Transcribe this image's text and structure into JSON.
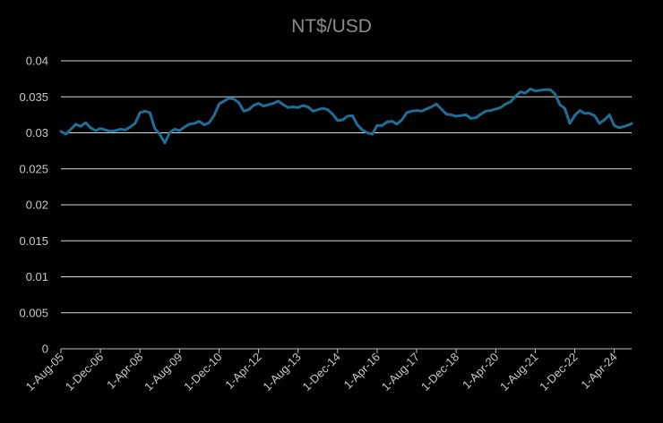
{
  "chart_data": {
    "type": "line",
    "title": "NT$/USD",
    "xlabel": "",
    "ylabel": "",
    "ylim": [
      0,
      0.04
    ],
    "yticks": [
      "0",
      "0.005",
      "0.01",
      "0.015",
      "0.02",
      "0.025",
      "0.03",
      "0.035",
      "0.04"
    ],
    "xticks": [
      "1-Aug-05",
      "1-Dec-06",
      "1-Apr-08",
      "1-Aug-09",
      "1-Dec-10",
      "1-Apr-12",
      "1-Aug-13",
      "1-Dec-14",
      "1-Apr-16",
      "1-Aug-17",
      "1-Dec-18",
      "1-Apr-20",
      "1-Aug-21",
      "1-Dec-22",
      "1-Apr-24"
    ],
    "xlim": [
      "2005-08-01",
      "2024-11-01"
    ],
    "grid": true,
    "line_color": "#1f6e96",
    "grid_color": "#d9d9d9",
    "series": [
      {
        "x": [
          "2005-08-01",
          "2005-10-01",
          "2005-12-01",
          "2006-02-01",
          "2006-04-01",
          "2006-06-01",
          "2006-08-01",
          "2006-10-01",
          "2006-12-01",
          "2007-02-01",
          "2007-04-01",
          "2007-06-01",
          "2007-08-01",
          "2007-10-01",
          "2007-12-01",
          "2008-02-01",
          "2008-04-01",
          "2008-06-01",
          "2008-08-01",
          "2008-10-01",
          "2008-12-01",
          "2009-02-01",
          "2009-04-01",
          "2009-06-01",
          "2009-08-01",
          "2009-10-01",
          "2009-12-01",
          "2010-02-01",
          "2010-04-01",
          "2010-06-01",
          "2010-08-01",
          "2010-10-01",
          "2010-12-01",
          "2011-02-01",
          "2011-04-01",
          "2011-06-01",
          "2011-08-01",
          "2011-10-01",
          "2011-12-01",
          "2012-02-01",
          "2012-04-01",
          "2012-06-01",
          "2012-08-01",
          "2012-10-01",
          "2012-12-01",
          "2013-02-01",
          "2013-04-01",
          "2013-06-01",
          "2013-08-01",
          "2013-10-01",
          "2013-12-01",
          "2014-02-01",
          "2014-04-01",
          "2014-06-01",
          "2014-08-01",
          "2014-10-01",
          "2014-12-01",
          "2015-02-01",
          "2015-04-01",
          "2015-06-01",
          "2015-08-01",
          "2015-10-01",
          "2015-12-01",
          "2016-02-01",
          "2016-04-01",
          "2016-06-01",
          "2016-08-01",
          "2016-10-01",
          "2016-12-01",
          "2017-02-01",
          "2017-04-01",
          "2017-06-01",
          "2017-08-01",
          "2017-10-01",
          "2017-12-01",
          "2018-02-01",
          "2018-04-01",
          "2018-06-01",
          "2018-08-01",
          "2018-10-01",
          "2018-12-01",
          "2019-02-01",
          "2019-04-01",
          "2019-06-01",
          "2019-08-01",
          "2019-10-01",
          "2019-12-01",
          "2020-02-01",
          "2020-04-01",
          "2020-06-01",
          "2020-08-01",
          "2020-10-01",
          "2020-12-01",
          "2021-02-01",
          "2021-04-01",
          "2021-06-01",
          "2021-08-01",
          "2021-10-01",
          "2021-12-01",
          "2022-02-01",
          "2022-04-01",
          "2022-06-01",
          "2022-08-01",
          "2022-10-01",
          "2022-12-01",
          "2023-02-01",
          "2023-04-01",
          "2023-06-01",
          "2023-08-01",
          "2023-10-01",
          "2023-12-01",
          "2024-02-01",
          "2024-04-01",
          "2024-06-01",
          "2024-08-01",
          "2024-10-01",
          "2024-11-01"
        ],
        "values": [
          0.0302,
          0.0298,
          0.0305,
          0.0312,
          0.0309,
          0.0314,
          0.0307,
          0.0303,
          0.0306,
          0.0304,
          0.0302,
          0.0303,
          0.0305,
          0.0304,
          0.0308,
          0.0313,
          0.0328,
          0.033,
          0.0328,
          0.0306,
          0.0298,
          0.0286,
          0.03,
          0.0305,
          0.0303,
          0.0308,
          0.0312,
          0.0313,
          0.0316,
          0.0311,
          0.0314,
          0.0324,
          0.034,
          0.0344,
          0.0348,
          0.0347,
          0.0342,
          0.033,
          0.0332,
          0.0338,
          0.0341,
          0.0337,
          0.0339,
          0.0341,
          0.0344,
          0.0339,
          0.0335,
          0.0336,
          0.0335,
          0.0338,
          0.0336,
          0.033,
          0.0332,
          0.0334,
          0.0332,
          0.0326,
          0.0317,
          0.0318,
          0.0323,
          0.0324,
          0.0311,
          0.0304,
          0.03,
          0.0298,
          0.031,
          0.031,
          0.0315,
          0.0316,
          0.0312,
          0.0318,
          0.0328,
          0.033,
          0.0331,
          0.033,
          0.0333,
          0.0336,
          0.034,
          0.0333,
          0.0326,
          0.0325,
          0.0323,
          0.0324,
          0.0325,
          0.032,
          0.0321,
          0.0326,
          0.033,
          0.0331,
          0.0333,
          0.0335,
          0.034,
          0.0343,
          0.0351,
          0.0357,
          0.0355,
          0.0361,
          0.0358,
          0.0359,
          0.036,
          0.036,
          0.0354,
          0.0339,
          0.0334,
          0.0313,
          0.0324,
          0.0331,
          0.0327,
          0.0327,
          0.0324,
          0.0313,
          0.0318,
          0.0325,
          0.031,
          0.0307,
          0.0309,
          0.0311,
          0.0313
        ]
      }
    ]
  }
}
